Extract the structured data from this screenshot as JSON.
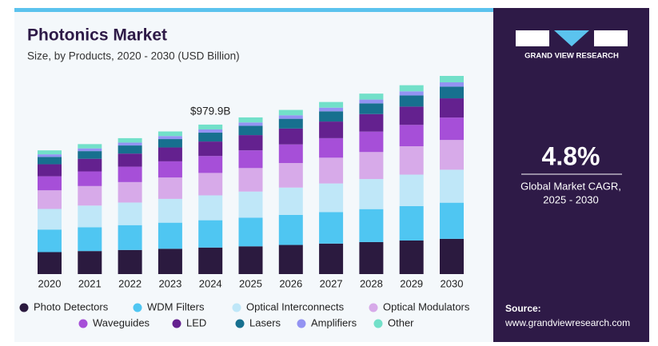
{
  "chart_data": {
    "type": "stacked_bar",
    "title": "Photonics Market",
    "subtitle": "Size, by Products, 2020 - 2030 (USD Billion)",
    "annotation": "$979.9B",
    "categories": [
      "2020",
      "2021",
      "2022",
      "2023",
      "2024",
      "2025",
      "2026",
      "2027",
      "2028",
      "2029",
      "2030"
    ],
    "series": [
      {
        "name": "Photo Detectors",
        "color": "#2b1a3f",
        "values": [
          144,
          151,
          158,
          166,
          174,
          182,
          191,
          200,
          210,
          220,
          231
        ]
      },
      {
        "name": "WDM Filters",
        "color": "#4fc6f2",
        "values": [
          148,
          156,
          163,
          171,
          179,
          188,
          197,
          206,
          216,
          226,
          237
        ]
      },
      {
        "name": "Optical Interconnects",
        "color": "#bfe7f8",
        "values": [
          135,
          142,
          148,
          156,
          163,
          171,
          179,
          188,
          197,
          206,
          216
        ]
      },
      {
        "name": "Optical Modulators",
        "color": "#d7aae9",
        "values": [
          122,
          128,
          134,
          140,
          147,
          154,
          161,
          169,
          177,
          186,
          195
        ]
      },
      {
        "name": "Waveguides",
        "color": "#a64fd8",
        "values": [
          92,
          96,
          101,
          106,
          111,
          116,
          122,
          128,
          134,
          140,
          147
        ]
      },
      {
        "name": "LED",
        "color": "#64218f",
        "values": [
          79,
          83,
          86,
          91,
          95,
          100,
          104,
          109,
          115,
          120,
          126
        ]
      },
      {
        "name": "Lasers",
        "color": "#17708f",
        "values": [
          48,
          50,
          53,
          55,
          58,
          61,
          64,
          67,
          70,
          73,
          77
        ]
      },
      {
        "name": "Amplifiers",
        "color": "#9393f2",
        "values": [
          17,
          18,
          19,
          20,
          21,
          22,
          23,
          24,
          25,
          27,
          28
        ]
      },
      {
        "name": "Other",
        "color": "#72e0c9",
        "values": [
          26,
          28,
          29,
          30,
          31.9,
          33,
          35,
          37,
          39,
          40,
          42
        ]
      }
    ]
  },
  "sidebar": {
    "brand": "GRAND VIEW RESEARCH",
    "cagr": "4.8%",
    "cagr_label_1": "Global Market CAGR,",
    "cagr_label_2": "2025 - 2030",
    "source_label": "Source:",
    "source_url": "www.grandviewresearch.com"
  }
}
